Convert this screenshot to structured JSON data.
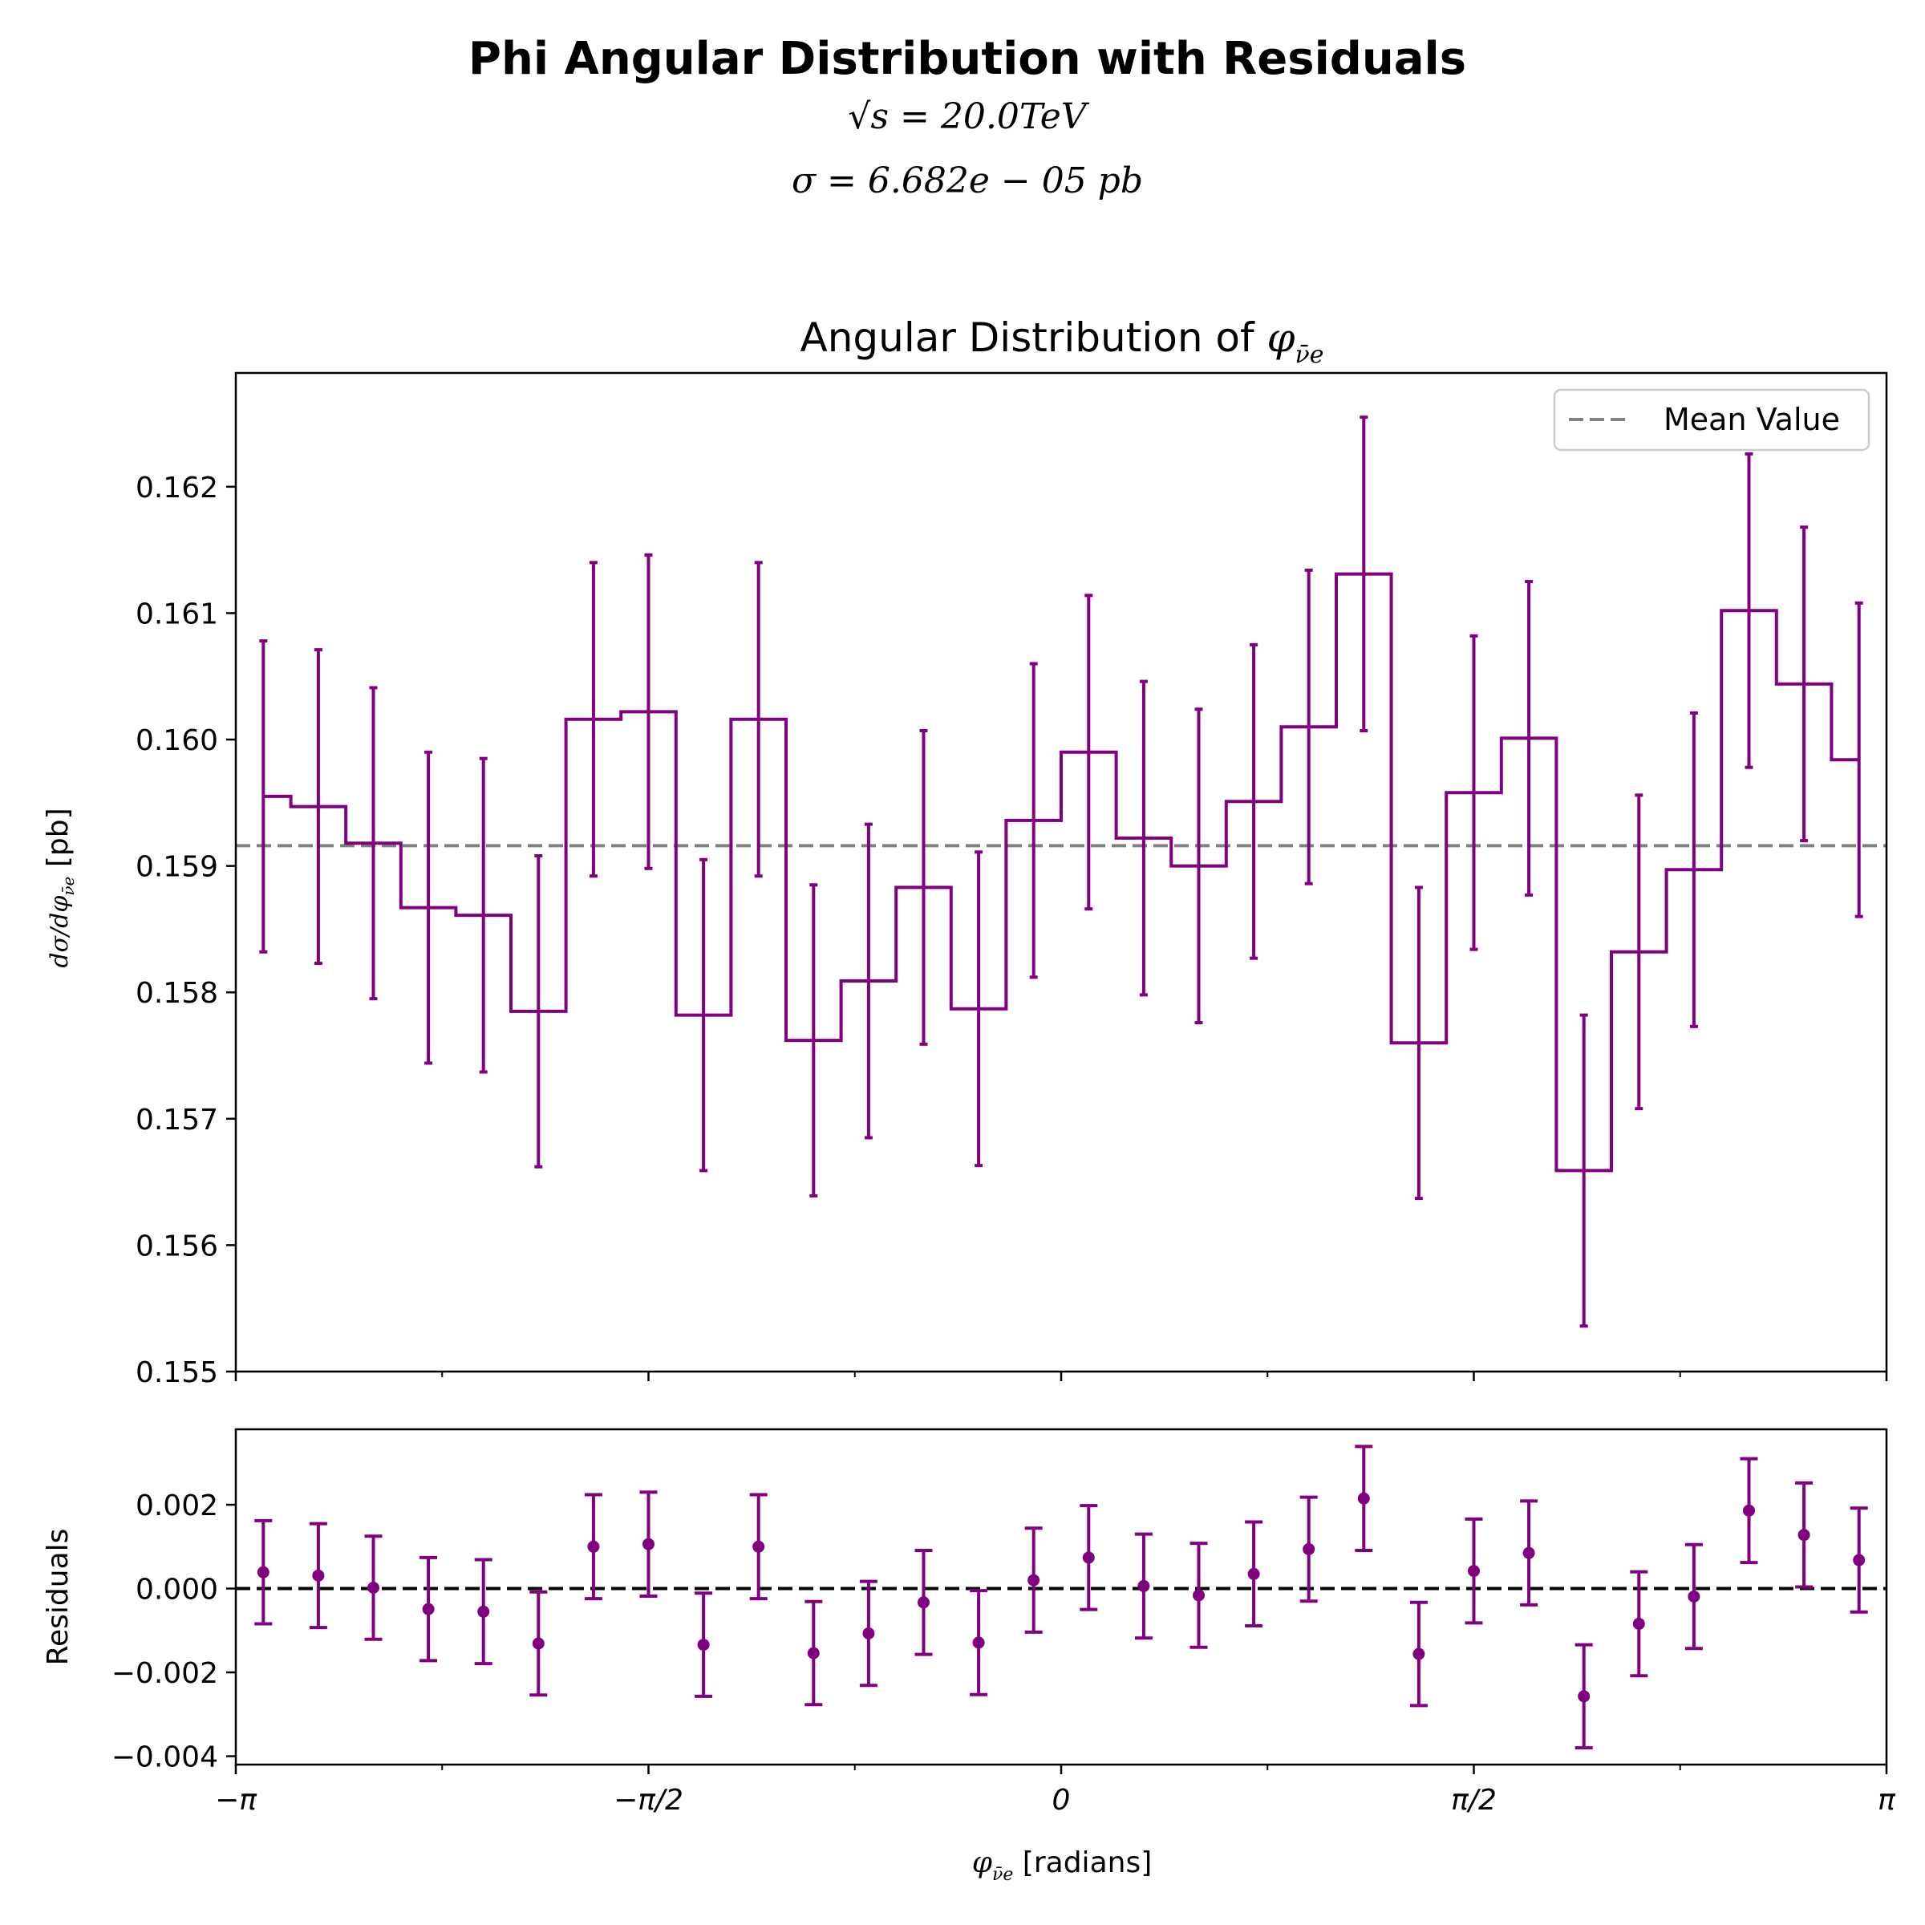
{
  "figure": {
    "title": "Phi Angular Distribution with Residuals",
    "energy_label": "√s = 20.0TeV",
    "xsec_label": "σ = 6.682e − 05 pb"
  },
  "chart_data": [
    {
      "type": "line",
      "style": "step-histogram-with-errorbars",
      "title": "Angular Distribution of φ_ν̄e",
      "ylabel": "dσ/dφ_ν̄e [pb]",
      "xlim": [
        -3.14159,
        3.14159
      ],
      "ylim": [
        0.155,
        0.1629
      ],
      "yticks": [
        "0.155",
        "0.156",
        "0.157",
        "0.158",
        "0.159",
        "0.160",
        "0.161",
        "0.162"
      ],
      "color": "#800080",
      "n_bins": 30,
      "series": [
        {
          "values": [
            0.15955,
            0.15947,
            0.15918,
            0.15867,
            0.15861,
            0.15785,
            0.16016,
            0.16022,
            0.15782,
            0.16016,
            0.15762,
            0.15809,
            0.15883,
            0.15787,
            0.15936,
            0.1599,
            0.15922,
            0.159,
            0.15951,
            0.1601,
            0.16131,
            0.1576,
            0.15958,
            0.16001,
            0.15659,
            0.15832,
            0.15897,
            0.16102,
            0.16044,
            0.15984
          ],
          "errors": [
            0.00123,
            0.00124,
            0.00123,
            0.00123,
            0.00124,
            0.00123,
            0.00124,
            0.00124,
            0.00123,
            0.00124,
            0.00123,
            0.00124,
            0.00124,
            0.00124,
            0.00124,
            0.00124,
            0.00124,
            0.00124,
            0.00124,
            0.00124,
            0.00124,
            0.00123,
            0.00124,
            0.00124,
            0.00123,
            0.00124,
            0.00124,
            0.00124,
            0.00124,
            0.00124
          ]
        }
      ],
      "mean_value": 0.15916,
      "legend": {
        "label": "Mean Value",
        "placement": "upper right",
        "color": "#808080"
      }
    },
    {
      "type": "scatter",
      "style": "points-with-errorbars",
      "xlabel": "φ_ν̄e [radians]",
      "ylabel": "Residuals",
      "xlim": [
        -3.14159,
        3.14159
      ],
      "ylim": [
        -0.0042,
        0.0038
      ],
      "yticks": [
        "−0.004",
        "−0.002",
        "0.000",
        "0.002"
      ],
      "xticks": [
        "−π",
        "−π/2",
        "0",
        "π/2",
        "π"
      ],
      "color": "#800080",
      "series": [
        {
          "values": [
            0.00039,
            0.00031,
            2e-05,
            -0.00049,
            -0.00055,
            -0.00131,
            0.001,
            0.00106,
            -0.00134,
            0.001,
            -0.00154,
            -0.00107,
            -0.00033,
            -0.00129,
            0.0002,
            0.00074,
            6e-05,
            -0.00016,
            0.00035,
            0.00094,
            0.00215,
            -0.00156,
            0.00042,
            0.00085,
            -0.00257,
            -0.00084,
            -0.00019,
            0.00186,
            0.00128,
            0.00068
          ],
          "errors": [
            0.00123,
            0.00124,
            0.00123,
            0.00123,
            0.00124,
            0.00123,
            0.00124,
            0.00124,
            0.00123,
            0.00124,
            0.00123,
            0.00124,
            0.00124,
            0.00124,
            0.00124,
            0.00124,
            0.00124,
            0.00124,
            0.00124,
            0.00124,
            0.00124,
            0.00123,
            0.00124,
            0.00124,
            0.00123,
            0.00124,
            0.00124,
            0.00124,
            0.00124,
            0.00124
          ]
        }
      ],
      "zero_line": 0.0
    }
  ],
  "colors": {
    "series": "#800080",
    "mean_line": "#808080",
    "zero_line": "#000000",
    "axes": "#000000"
  }
}
